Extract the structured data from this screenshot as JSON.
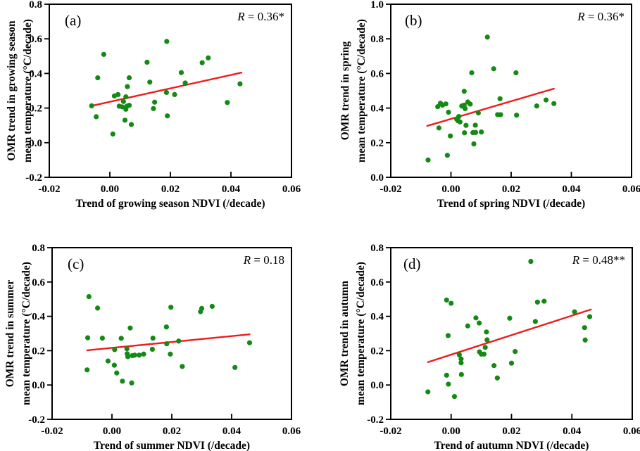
{
  "figure": {
    "background": "#ffffff",
    "dot_color": "#148a14",
    "line_color": "#ee1c1c",
    "axis_color": "#000000",
    "text_color": "#000000"
  },
  "chart_data": [
    {
      "id": "a",
      "type": "scatter",
      "panel_label": "(a)",
      "annotation": "R = 0.36*",
      "xlabel": "Trend of growing season NDVI (/decade)",
      "ylabel_line1": "OMR trend in growing season",
      "ylabel_line2": "mean temperature (°C/decade)",
      "xlim": [
        -0.02,
        0.06
      ],
      "ylim": [
        -0.2,
        0.8
      ],
      "xticks": [
        "-0.02",
        "0.00",
        "0.02",
        "0.04",
        "0.06"
      ],
      "yticks": [
        "-0.2",
        "0.0",
        "0.2",
        "0.4",
        "0.6",
        "0.8"
      ],
      "grid": false,
      "legend": "none",
      "points": [
        [
          -0.002,
          0.51
        ],
        [
          -0.004,
          0.375
        ],
        [
          -0.006,
          0.213
        ],
        [
          -0.0045,
          0.15
        ],
        [
          0.001,
          0.05
        ],
        [
          0.0015,
          0.27
        ],
        [
          0.0027,
          0.278
        ],
        [
          0.0053,
          0.265
        ],
        [
          0.0045,
          0.238
        ],
        [
          0.0031,
          0.211
        ],
        [
          0.0041,
          0.207
        ],
        [
          0.0056,
          0.211
        ],
        [
          0.0053,
          0.193
        ],
        [
          0.0064,
          0.216
        ],
        [
          0.0058,
          0.324
        ],
        [
          0.0064,
          0.375
        ],
        [
          0.005,
          0.13
        ],
        [
          0.0071,
          0.105
        ],
        [
          0.0123,
          0.465
        ],
        [
          0.0132,
          0.35
        ],
        [
          0.0148,
          0.234
        ],
        [
          0.0144,
          0.197
        ],
        [
          0.0188,
          0.585
        ],
        [
          0.0187,
          0.29
        ],
        [
          0.019,
          0.155
        ],
        [
          0.0214,
          0.278
        ],
        [
          0.0236,
          0.405
        ],
        [
          0.0249,
          0.345
        ],
        [
          0.0305,
          0.462
        ],
        [
          0.0325,
          0.49
        ],
        [
          0.0388,
          0.232
        ],
        [
          0.043,
          0.34
        ]
      ],
      "fit_line": {
        "x1": -0.006,
        "y1": 0.213,
        "x2": 0.0435,
        "y2": 0.405
      }
    },
    {
      "id": "b",
      "type": "scatter",
      "panel_label": "(b)",
      "annotation": "R = 0.36*",
      "xlabel": "Trend of spring NDVI (/decade)",
      "ylabel_line1": "OMR trend in spring",
      "ylabel_line2": "mean temperature (°C/decade)",
      "xlim": [
        -0.02,
        0.06
      ],
      "ylim": [
        0.0,
        1.0
      ],
      "xticks": [
        "-0.02",
        "0.00",
        "0.02",
        "0.04",
        "0.06"
      ],
      "yticks": [
        "0.0",
        "0.2",
        "0.4",
        "0.6",
        "0.8",
        "1.0"
      ],
      "grid": false,
      "legend": "none",
      "points": [
        [
          -0.0076,
          0.1
        ],
        [
          -0.004,
          0.285
        ],
        [
          -0.0044,
          0.408
        ],
        [
          -0.0035,
          0.428
        ],
        [
          -0.0028,
          0.417
        ],
        [
          -0.0017,
          0.424
        ],
        [
          -0.0012,
          0.127
        ],
        [
          -0.0008,
          0.376
        ],
        [
          -0.0002,
          0.239
        ],
        [
          0.0019,
          0.336
        ],
        [
          0.0023,
          0.327
        ],
        [
          0.0026,
          0.351
        ],
        [
          0.003,
          0.32
        ],
        [
          0.0036,
          0.412
        ],
        [
          0.0044,
          0.497
        ],
        [
          0.0044,
          0.417
        ],
        [
          0.0047,
          0.397
        ],
        [
          0.005,
          0.3
        ],
        [
          0.0045,
          0.257
        ],
        [
          0.0056,
          0.435
        ],
        [
          0.0064,
          0.423
        ],
        [
          0.0069,
          0.604
        ],
        [
          0.0073,
          0.258
        ],
        [
          0.0076,
          0.193
        ],
        [
          0.0081,
          0.301
        ],
        [
          0.0082,
          0.259
        ],
        [
          0.0091,
          0.372
        ],
        [
          0.0101,
          0.262
        ],
        [
          0.0121,
          0.81
        ],
        [
          0.0142,
          0.627
        ],
        [
          0.0155,
          0.362
        ],
        [
          0.0163,
          0.454
        ],
        [
          0.0165,
          0.362
        ],
        [
          0.0216,
          0.604
        ],
        [
          0.0218,
          0.359
        ],
        [
          0.0285,
          0.412
        ],
        [
          0.0316,
          0.447
        ],
        [
          0.0342,
          0.426
        ]
      ],
      "fit_line": {
        "x1": -0.0079,
        "y1": 0.297,
        "x2": 0.0342,
        "y2": 0.512
      }
    },
    {
      "id": "c",
      "type": "scatter",
      "panel_label": "(c)",
      "annotation": "R = 0.18",
      "xlabel": "Trend of summer NDVI (/decade)",
      "ylabel_line1": "OMR trend in summer",
      "ylabel_line2": "mean temperature (°C/decade)",
      "xlim": [
        -0.02,
        0.06
      ],
      "ylim": [
        -0.2,
        0.8
      ],
      "xticks": [
        "-0.02",
        "0.00",
        "0.02",
        "0.04",
        "0.06"
      ],
      "yticks": [
        "-0.2",
        "0.0",
        "0.2",
        "0.4",
        "0.6",
        "0.8"
      ],
      "grid": false,
      "legend": "none",
      "points": [
        [
          -0.0077,
          0.515
        ],
        [
          -0.0048,
          0.448
        ],
        [
          -0.0081,
          0.275
        ],
        [
          -0.0032,
          0.273
        ],
        [
          -0.0083,
          0.088
        ],
        [
          -0.0013,
          0.14
        ],
        [
          0.0008,
          0.115
        ],
        [
          0.0016,
          0.07
        ],
        [
          0.0009,
          0.206
        ],
        [
          0.0031,
          0.272
        ],
        [
          0.0035,
          0.022
        ],
        [
          0.005,
          0.211
        ],
        [
          0.0051,
          0.182
        ],
        [
          0.0053,
          0.165
        ],
        [
          0.0061,
          0.332
        ],
        [
          0.0066,
          0.012
        ],
        [
          0.0068,
          0.171
        ],
        [
          0.0076,
          0.174
        ],
        [
          0.0091,
          0.174
        ],
        [
          0.0106,
          0.18
        ],
        [
          0.0137,
          0.273
        ],
        [
          0.0135,
          0.208
        ],
        [
          0.0182,
          0.338
        ],
        [
          0.0183,
          0.24
        ],
        [
          0.0197,
          0.453
        ],
        [
          0.0195,
          0.18
        ],
        [
          0.0223,
          0.256
        ],
        [
          0.0235,
          0.108
        ],
        [
          0.0296,
          0.427
        ],
        [
          0.03,
          0.446
        ],
        [
          0.0335,
          0.458
        ],
        [
          0.0411,
          0.102
        ],
        [
          0.046,
          0.246
        ]
      ],
      "fit_line": {
        "x1": -0.0083,
        "y1": 0.202,
        "x2": 0.046,
        "y2": 0.295
      }
    },
    {
      "id": "d",
      "type": "scatter",
      "panel_label": "(d)",
      "annotation": "R = 0.48**",
      "xlabel": "Trend of autumn NDVI (/decade)",
      "ylabel_line1": "OMR trend in autumn",
      "ylabel_line2": "mean temperature (°C/decade)",
      "xlim": [
        -0.02,
        0.06
      ],
      "ylim": [
        -0.2,
        0.8
      ],
      "xticks": [
        "-0.02",
        "0.00",
        "0.02",
        "0.04",
        "0.06"
      ],
      "yticks": [
        "-0.2",
        "0.0",
        "0.2",
        "0.4",
        "0.6",
        "0.8"
      ],
      "grid": false,
      "legend": "none",
      "points": [
        [
          -0.0077,
          -0.04
        ],
        [
          -0.0015,
          0.495
        ],
        [
          0.0,
          0.476
        ],
        [
          -0.001,
          0.288
        ],
        [
          -0.0015,
          0.057
        ],
        [
          -0.0009,
          0.005
        ],
        [
          0.0011,
          -0.067
        ],
        [
          0.0027,
          0.176
        ],
        [
          0.0033,
          0.152
        ],
        [
          0.0033,
          0.129
        ],
        [
          0.0034,
          0.061
        ],
        [
          0.0055,
          0.344
        ],
        [
          0.0082,
          0.391
        ],
        [
          0.0093,
          0.361
        ],
        [
          0.0094,
          0.193
        ],
        [
          0.01,
          0.18
        ],
        [
          0.0109,
          0.18
        ],
        [
          0.0113,
          0.219
        ],
        [
          0.0117,
          0.309
        ],
        [
          0.0119,
          0.263
        ],
        [
          0.0142,
          0.113
        ],
        [
          0.0153,
          0.041
        ],
        [
          0.0194,
          0.389
        ],
        [
          0.02,
          0.127
        ],
        [
          0.0212,
          0.195
        ],
        [
          0.0264,
          0.72
        ],
        [
          0.0279,
          0.37
        ],
        [
          0.0286,
          0.483
        ],
        [
          0.0308,
          0.488
        ],
        [
          0.0409,
          0.426
        ],
        [
          0.0442,
          0.334
        ],
        [
          0.0444,
          0.262
        ],
        [
          0.0459,
          0.398
        ]
      ],
      "fit_line": {
        "x1": -0.0077,
        "y1": 0.133,
        "x2": 0.0463,
        "y2": 0.44
      }
    }
  ]
}
